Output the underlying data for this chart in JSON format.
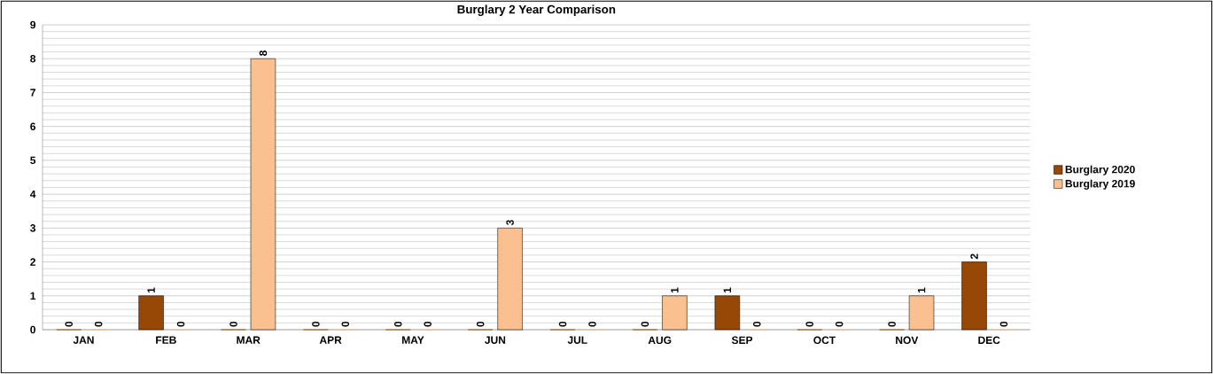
{
  "chart_data": {
    "type": "bar",
    "title": "Burglary 2 Year Comparison",
    "categories": [
      "JAN",
      "FEB",
      "MAR",
      "APR",
      "MAY",
      "JUN",
      "JUL",
      "AUG",
      "SEP",
      "OCT",
      "NOV",
      "DEC"
    ],
    "series": [
      {
        "name": "Burglary 2020",
        "color": "#974706",
        "values": [
          0,
          1,
          0,
          0,
          0,
          0,
          0,
          0,
          1,
          0,
          0,
          2
        ]
      },
      {
        "name": "Burglary 2019",
        "color": "#fac090",
        "values": [
          0,
          0,
          8,
          0,
          0,
          3,
          0,
          1,
          0,
          0,
          1,
          0
        ]
      }
    ],
    "ylim": [
      0,
      9
    ],
    "yticks": [
      0,
      1,
      2,
      3,
      4,
      5,
      6,
      7,
      8,
      9
    ],
    "grid": "y",
    "legend": "right",
    "data_labels": true
  }
}
